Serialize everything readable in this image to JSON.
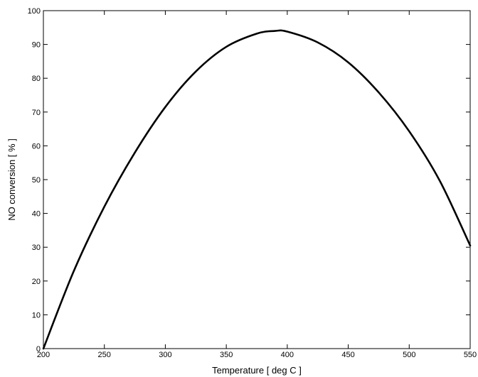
{
  "chart_data": {
    "type": "line",
    "title": "",
    "xlabel": "Temperature [ deg C ]",
    "ylabel": "NO conversion [ % ]",
    "xlim": [
      200,
      550
    ],
    "ylim": [
      0,
      100
    ],
    "xticks": [
      200,
      250,
      300,
      350,
      400,
      450,
      500,
      550
    ],
    "yticks": [
      0,
      10,
      20,
      30,
      40,
      50,
      60,
      70,
      80,
      90,
      100
    ],
    "grid": false,
    "legend": "none",
    "series": [
      {
        "color": "#000000",
        "x": [
          200,
          225,
          250,
          275,
          300,
          325,
          350,
          375,
          390,
          400,
          425,
          450,
          475,
          500,
          525,
          550
        ],
        "y": [
          0,
          23,
          42,
          58,
          71.5,
          82,
          89.3,
          93.2,
          94.0,
          93.8,
          90.6,
          84.7,
          75.8,
          64.3,
          49.7,
          30.5
        ]
      }
    ]
  }
}
